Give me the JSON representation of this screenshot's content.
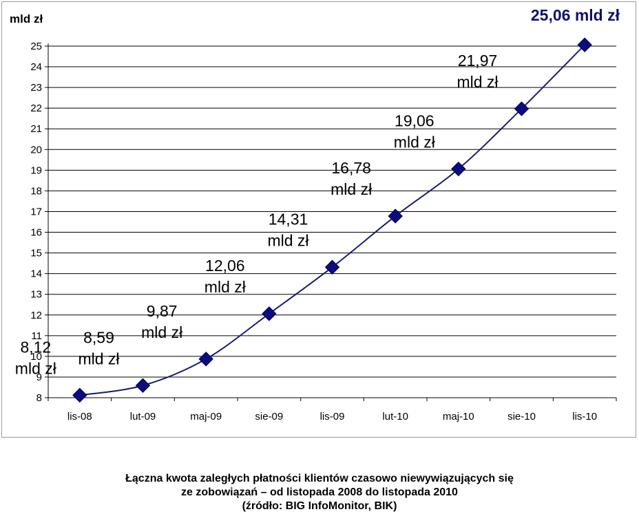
{
  "chart_data": {
    "type": "line",
    "unit_label": "mld zł",
    "highlight_label": "25,06 mld zł",
    "categories": [
      "lis-08",
      "lut-09",
      "maj-09",
      "sie-09",
      "lis-09",
      "lut-10",
      "maj-10",
      "sie-10",
      "lis-10"
    ],
    "series": [
      {
        "values": [
          8.12,
          8.59,
          9.87,
          12.06,
          14.31,
          16.78,
          19.06,
          21.97,
          25.06
        ]
      }
    ],
    "data_labels": [
      [
        "8,12",
        "mld zł"
      ],
      [
        "8,59",
        "mld zł"
      ],
      [
        "9,87",
        "mld zł"
      ],
      [
        "12,06",
        "mld zł"
      ],
      [
        "14,31",
        "mld zł"
      ],
      [
        "16,78",
        "mld zł"
      ],
      [
        "19,06",
        "mld zł"
      ],
      [
        "21,97",
        "mld zł"
      ]
    ],
    "yticks": [
      8,
      9,
      10,
      11,
      12,
      13,
      14,
      15,
      16,
      17,
      18,
      19,
      20,
      21,
      22,
      23,
      24,
      25
    ],
    "ylim": [
      8,
      25
    ],
    "grid": true,
    "colors": {
      "line": "#1a1a6e",
      "marker": "#0c0c80",
      "highlight": "#10106e",
      "grid": "#000000"
    }
  },
  "caption": {
    "line1": "Łączna kwota zaległych płatności klientów czasowo niewywiązujących się",
    "line2": "ze zobowiązań – od listopada 2008 do listopada 2010",
    "line3": "(źródło: BIG InfoMonitor, BIK)"
  }
}
